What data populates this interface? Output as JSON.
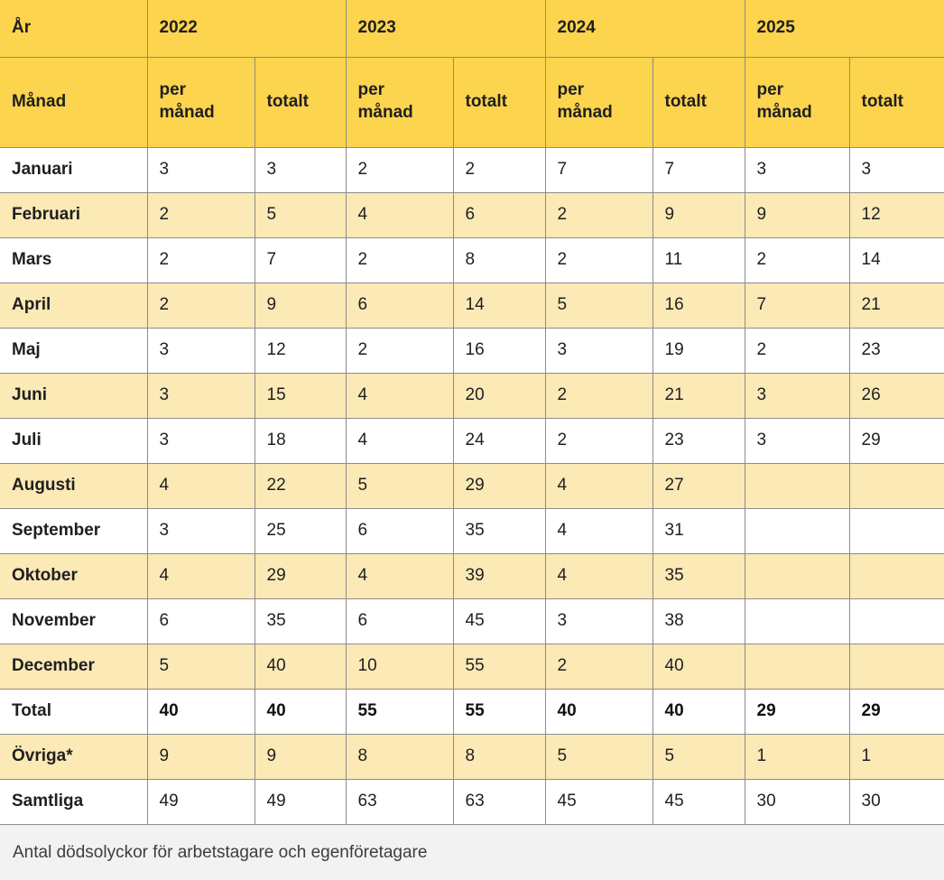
{
  "chart_data": {
    "type": "table",
    "title": "Antal dödsolyckor för arbetstagare och egenföretagare",
    "header": {
      "year_label": "År",
      "month_label": "Månad",
      "years": [
        "2022",
        "2023",
        "2024",
        "2025"
      ],
      "sub_labels": [
        "per månad",
        "totalt"
      ]
    },
    "columns": [
      "Månad",
      "2022 per månad",
      "2022 totalt",
      "2023 per månad",
      "2023 totalt",
      "2024 per månad",
      "2024 totalt",
      "2025 per månad",
      "2025 totalt"
    ],
    "rows": [
      {
        "label": "Januari",
        "values": [
          "3",
          "3",
          "2",
          "2",
          "7",
          "7",
          "3",
          "3"
        ],
        "bold": false
      },
      {
        "label": "Februari",
        "values": [
          "2",
          "5",
          "4",
          "6",
          "2",
          "9",
          "9",
          "12"
        ],
        "bold": false
      },
      {
        "label": "Mars",
        "values": [
          "2",
          "7",
          "2",
          "8",
          "2",
          "11",
          "2",
          "14"
        ],
        "bold": false
      },
      {
        "label": "April",
        "values": [
          "2",
          "9",
          "6",
          "14",
          "5",
          "16",
          "7",
          "21"
        ],
        "bold": false
      },
      {
        "label": "Maj",
        "values": [
          "3",
          "12",
          "2",
          "16",
          "3",
          "19",
          "2",
          "23"
        ],
        "bold": false
      },
      {
        "label": "Juni",
        "values": [
          "3",
          "15",
          "4",
          "20",
          "2",
          "21",
          "3",
          "26"
        ],
        "bold": false
      },
      {
        "label": "Juli",
        "values": [
          "3",
          "18",
          "4",
          "24",
          "2",
          "23",
          "3",
          "29"
        ],
        "bold": false
      },
      {
        "label": "Augusti",
        "values": [
          "4",
          "22",
          "5",
          "29",
          "4",
          "27",
          "",
          ""
        ],
        "bold": false
      },
      {
        "label": "September",
        "values": [
          "3",
          "25",
          "6",
          "35",
          "4",
          "31",
          "",
          ""
        ],
        "bold": false
      },
      {
        "label": "Oktober",
        "values": [
          "4",
          "29",
          "4",
          "39",
          "4",
          "35",
          "",
          ""
        ],
        "bold": false
      },
      {
        "label": "November",
        "values": [
          "6",
          "35",
          "6",
          "45",
          "3",
          "38",
          "",
          ""
        ],
        "bold": false
      },
      {
        "label": "December",
        "values": [
          "5",
          "40",
          "10",
          "55",
          "2",
          "40",
          "",
          ""
        ],
        "bold": false
      },
      {
        "label": "Total",
        "values": [
          "40",
          "40",
          "55",
          "55",
          "40",
          "40",
          "29",
          "29"
        ],
        "bold": true
      },
      {
        "label": "Övriga*",
        "values": [
          "9",
          "9",
          "8",
          "8",
          "5",
          "5",
          "1",
          "1"
        ],
        "bold": false
      },
      {
        "label": "Samtliga",
        "values": [
          "49",
          "49",
          "63",
          "63",
          "45",
          "45",
          "30",
          "30"
        ],
        "bold": false
      }
    ],
    "caption": "Antal dödsolyckor för arbetstagare och egenföretagare",
    "layout": {
      "grid": "full-borders",
      "striped_rows": true
    }
  },
  "colors": {
    "header_bg": "#fcd44d",
    "stripe_bg": "#fbe9b6",
    "row_bg": "#ffffff",
    "border": "#8c8c8c",
    "caption_bg": "#f2f2f2",
    "label_color": "#111111",
    "value_color": "#1f1f1f",
    "caption_color": "#3d3d3d"
  }
}
